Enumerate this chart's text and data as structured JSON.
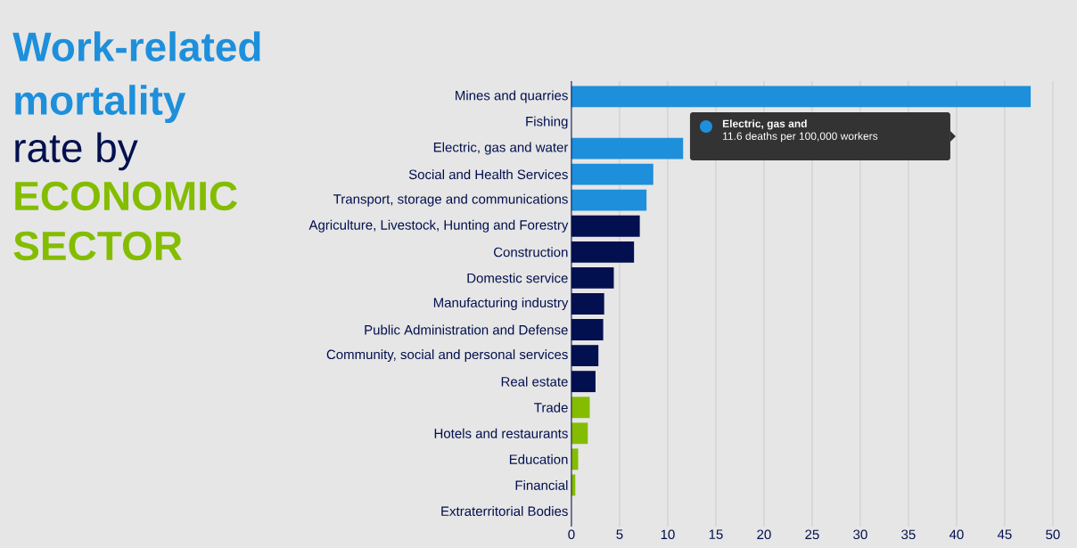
{
  "chart_data": {
    "type": "bar",
    "orientation": "horizontal",
    "title": "Work-related mortality",
    "subtitle": "rate by",
    "categories": [
      "Mines and quarries",
      "Fishing",
      "Electric, gas and water",
      "Social and Health Services",
      "Transport, storage and communications",
      "Agriculture, Livestock, Hunting and Forestry",
      "Construction",
      "Domestic service",
      "Manufacturing industry",
      "Public Administration and Defense",
      "Community, social and personal services",
      "Real estate",
      "Trade",
      "Hotels and restaurants",
      "Education",
      "Financial",
      "Extraterritorial Bodies"
    ],
    "values": [
      47.7,
      null,
      11.6,
      8.5,
      7.8,
      7.1,
      6.5,
      4.4,
      3.4,
      3.3,
      2.8,
      2.5,
      1.9,
      1.7,
      0.7,
      0.4,
      0
    ],
    "colors": [
      "#1e8fdb",
      "#1e8fdb",
      "#1e8fdb",
      "#1e8fdb",
      "#1e8fdb",
      "#03104f",
      "#03104f",
      "#03104f",
      "#03104f",
      "#03104f",
      "#03104f",
      "#03104f",
      "#84bd00",
      "#84bd00",
      "#84bd00",
      "#84bd00",
      "#84bd00"
    ],
    "xlim": [
      0,
      52.5
    ],
    "xticks": [
      0,
      5,
      10,
      15,
      20,
      25,
      30,
      35,
      40,
      45,
      50
    ],
    "grid": "x",
    "annotations": [
      "ECONOMIC SECTOR",
      "Electric, gas and",
      "11.6 deaths per 100,000 workers"
    ]
  }
}
